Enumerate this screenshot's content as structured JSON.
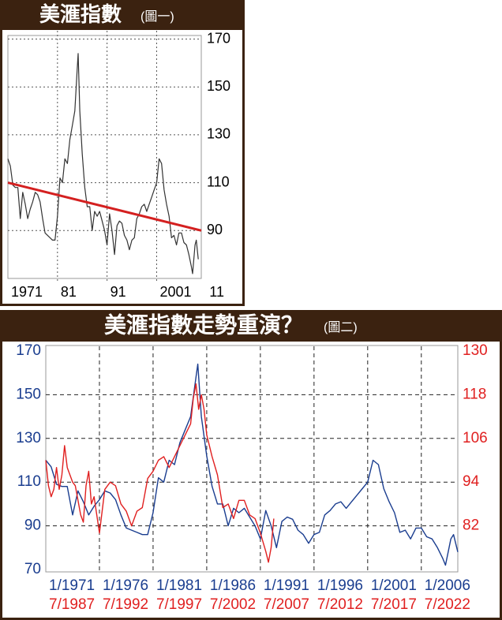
{
  "chart_data": [
    {
      "type": "line",
      "title": "美滙指數",
      "subtitle": "(圖一)",
      "xlim": [
        1971,
        2010
      ],
      "xticks": [
        1971,
        {
          "value": 1981,
          "label": "81"
        },
        {
          "value": 1991,
          "label": "91"
        },
        2001,
        {
          "value": 2011,
          "label": "11"
        }
      ],
      "ylim": [
        70,
        171.5
      ],
      "yticks": [
        90,
        110,
        130,
        150,
        170
      ],
      "grid": true,
      "series": [
        {
          "color": "#333333",
          "x": [
            1971,
            1971.5,
            1972,
            1972.5,
            1973,
            1973.5,
            1974,
            1974.5,
            1975,
            1975.5,
            1976,
            1976.5,
            1977,
            1977.5,
            1978,
            1978.5,
            1979,
            1979.5,
            1980,
            1980.5,
            1981,
            1981.5,
            1982,
            1982.5,
            1983,
            1983.5,
            1984,
            1984.5,
            1985,
            1985.17,
            1985.5,
            1986,
            1986.5,
            1987,
            1987.5,
            1988,
            1988.5,
            1989,
            1989.5,
            1990,
            1990.5,
            1991,
            1991.5,
            1992,
            1992.5,
            1993,
            1993.5,
            1994,
            1994.5,
            1995,
            1995.5,
            1996,
            1996.5,
            1997,
            1997.5,
            1998,
            1998.5,
            1999,
            1999.5,
            2000,
            2000.5,
            2001,
            2001.5,
            2002,
            2002.5,
            2003,
            2003.5,
            2004,
            2004.5,
            2005,
            2005.5,
            2006,
            2006.5,
            2007,
            2007.5,
            2008,
            2008.25,
            2008.75,
            2009,
            2009.4
          ],
          "values": [
            120,
            117,
            109,
            108,
            108,
            95,
            106,
            101,
            95,
            99,
            102,
            106,
            105,
            102,
            95,
            89,
            88,
            87,
            86,
            86,
            96,
            112,
            110,
            120,
            118,
            128,
            134,
            140,
            158,
            164,
            140,
            122,
            108,
            100,
            100,
            90,
            98,
            96,
            98,
            94,
            90,
            84,
            97,
            90,
            80,
            92,
            94,
            93,
            88,
            86,
            82,
            86,
            87,
            95,
            97,
            100,
            101,
            98,
            101,
            104,
            107,
            110,
            120,
            118,
            107,
            101,
            96,
            87,
            88,
            84,
            89,
            89,
            85,
            84,
            80,
            75,
            72,
            84,
            86,
            78
          ]
        },
        {
          "color": "#d42020",
          "x": [
            1971,
            2010
          ],
          "values": [
            110,
            90
          ]
        }
      ]
    },
    {
      "type": "line",
      "title": "美滙指數走勢重演？",
      "subtitle": "(圖二)",
      "xlim": [
        1971,
        2009.4
      ],
      "xticks": [
        {
          "value": 1971,
          "label": "1/1971"
        },
        {
          "value": 1976,
          "label": "1/1976"
        },
        {
          "value": 1981,
          "label": "1/1981"
        },
        {
          "value": 1986,
          "label": "1/1986"
        },
        {
          "value": 1991,
          "label": "1/1991"
        },
        {
          "value": 1996,
          "label": "1/1996"
        },
        {
          "value": 2001,
          "label": "1/2001"
        },
        {
          "value": 2006,
          "label": "1/2006"
        }
      ],
      "x2lim": [
        1987.5,
        2025.9
      ],
      "x2ticks": [
        {
          "value": 1987.5,
          "label": "7/1987"
        },
        {
          "value": 1992.5,
          "label": "7/1992"
        },
        {
          "value": 1997.5,
          "label": "7/1997"
        },
        {
          "value": 2002.5,
          "label": "7/2002"
        },
        {
          "value": 2007.5,
          "label": "7/2007"
        },
        {
          "value": 2012.5,
          "label": "7/2012"
        },
        {
          "value": 2017.5,
          "label": "7/2017"
        },
        {
          "value": 2022.5,
          "label": "7/2022"
        }
      ],
      "ylim": [
        70,
        170
      ],
      "yticks": [
        70,
        90,
        110,
        130,
        150,
        170
      ],
      "y2lim": [
        70,
        130
      ],
      "y2ticks": [
        82,
        94,
        106,
        118,
        130
      ],
      "grid": true,
      "series": [
        {
          "color": "#1a3d8f",
          "x": [
            1971,
            1971.5,
            1972,
            1972.5,
            1973,
            1973.5,
            1974,
            1974.5,
            1975,
            1975.5,
            1976,
            1976.5,
            1977,
            1977.5,
            1978,
            1978.5,
            1979,
            1979.5,
            1980,
            1980.5,
            1981,
            1981.5,
            1982,
            1982.5,
            1983,
            1983.5,
            1984,
            1984.5,
            1985,
            1985.17,
            1985.5,
            1986,
            1986.5,
            1987,
            1987.5,
            1988,
            1988.5,
            1989,
            1989.5,
            1990,
            1990.5,
            1991,
            1991.5,
            1992,
            1992.5,
            1993,
            1993.5,
            1994,
            1994.5,
            1995,
            1995.5,
            1996,
            1996.5,
            1997,
            1997.5,
            1998,
            1998.5,
            1999,
            1999.5,
            2000,
            2000.5,
            2001,
            2001.5,
            2002,
            2002.5,
            2003,
            2003.5,
            2004,
            2004.5,
            2005,
            2005.5,
            2006,
            2006.5,
            2007,
            2007.5,
            2008,
            2008.25,
            2008.75,
            2009,
            2009.4
          ],
          "values": [
            120,
            117,
            109,
            108,
            108,
            95,
            106,
            101,
            95,
            99,
            102,
            106,
            105,
            102,
            95,
            89,
            88,
            87,
            86,
            86,
            96,
            112,
            110,
            120,
            118,
            128,
            134,
            140,
            158,
            164,
            140,
            122,
            108,
            100,
            100,
            90,
            98,
            96,
            98,
            94,
            90,
            84,
            97,
            90,
            80,
            92,
            94,
            93,
            88,
            86,
            82,
            86,
            87,
            95,
            97,
            100,
            101,
            98,
            101,
            104,
            107,
            110,
            120,
            118,
            107,
            101,
            96,
            87,
            88,
            84,
            89,
            89,
            85,
            84,
            80,
            75,
            72,
            84,
            86,
            78
          ]
        },
        {
          "color": "#e02020",
          "axis": "y2",
          "x": [
            1987.5,
            1987.75,
            1988,
            1988.25,
            1988.5,
            1988.75,
            1989,
            1989.25,
            1989.5,
            1989.75,
            1990,
            1990.25,
            1990.5,
            1990.75,
            1991,
            1991.25,
            1991.5,
            1991.75,
            1992,
            1992.5,
            1993,
            1993.5,
            1994,
            1994.5,
            1995,
            1995.5,
            1996,
            1996.5,
            1997,
            1997.5,
            1998,
            1998.5,
            1999,
            1999.5,
            2000,
            2000.5,
            2001,
            2001.25,
            2001.5,
            2001.75,
            2002,
            2002.25,
            2002.5,
            2003,
            2003.5,
            2004,
            2004.5,
            2005,
            2005.5,
            2006,
            2006.5,
            2007,
            2007.5,
            2008,
            2008.25,
            2008.5,
            2008.75
          ],
          "values": [
            100,
            93,
            90,
            92,
            98,
            92,
            96,
            104,
            98,
            96,
            94,
            93,
            89,
            85,
            83,
            93,
            97,
            88,
            90,
            80,
            92,
            94,
            93,
            88,
            86,
            82,
            86,
            87,
            95,
            97,
            100,
            101,
            98,
            101,
            104,
            107,
            110,
            117,
            121,
            114,
            118,
            114,
            107,
            101,
            96,
            87,
            88,
            84,
            89,
            89,
            85,
            84,
            80,
            75,
            72,
            76,
            84
          ]
        }
      ]
    }
  ]
}
